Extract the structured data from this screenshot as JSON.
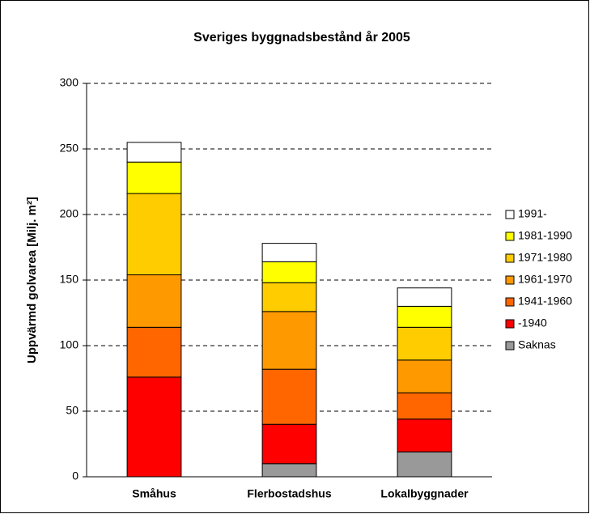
{
  "chart_data": {
    "type": "stacked_bar",
    "title": "Sveriges byggnadsbestånd år 2005",
    "y_label": "Uppvärmd golvarea [Milj. m²]",
    "categories": [
      "Småhus",
      "Flerbostadshus",
      "Lokalbyggnader"
    ],
    "series": [
      {
        "name": "Saknas",
        "color": "#999999",
        "values": [
          0,
          10,
          19
        ]
      },
      {
        "name": "-1940",
        "color": "#ff0000",
        "values": [
          76,
          30,
          25
        ]
      },
      {
        "name": "1941-1960",
        "color": "#ff6600",
        "values": [
          38,
          42,
          20
        ]
      },
      {
        "name": "1961-1970",
        "color": "#ff9900",
        "values": [
          40,
          44,
          25
        ]
      },
      {
        "name": "1971-1980",
        "color": "#ffcc00",
        "values": [
          62,
          22,
          25
        ]
      },
      {
        "name": "1981-1990",
        "color": "#ffff00",
        "values": [
          24,
          16,
          16
        ]
      },
      {
        "name": "1991-",
        "color": "#ffffff",
        "values": [
          15,
          14,
          14
        ]
      }
    ],
    "ylim": [
      0,
      300
    ],
    "yticks": [
      0,
      50,
      100,
      150,
      200,
      250,
      300
    ],
    "grid": true,
    "legend": "right"
  }
}
